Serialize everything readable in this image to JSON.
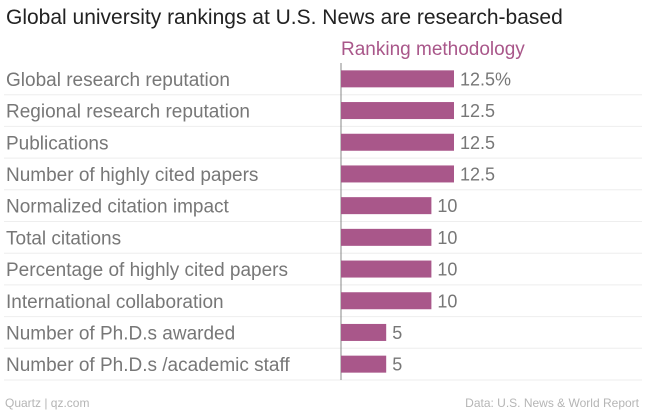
{
  "chart_data": {
    "type": "bar",
    "orientation": "horizontal",
    "title": "Global university rankings at U.S. News are research-based",
    "series": [
      {
        "name": "Ranking methodology",
        "values": [
          12.5,
          12.5,
          12.5,
          12.5,
          10,
          10,
          10,
          10,
          5,
          5
        ]
      }
    ],
    "categories": [
      "Global research reputation",
      "Regional research reputation",
      "Publications",
      "Number of highly cited papers",
      "Normalized citation impact",
      "Total citations",
      "Percentage of highly cited papers",
      "International collaboration",
      "Number of Ph.D.s awarded",
      "Number of Ph.D.s /academic staff"
    ],
    "value_labels": [
      "12.5%",
      "12.5",
      "12.5",
      "12.5",
      "10",
      "10",
      "10",
      "10",
      "5",
      "5"
    ],
    "xlim": [
      0,
      12.5
    ],
    "grid": true,
    "bar_color": "#a9578a"
  },
  "footer": {
    "credit": "Quartz | qz.com",
    "source": "Data: U.S. News & World Report"
  }
}
